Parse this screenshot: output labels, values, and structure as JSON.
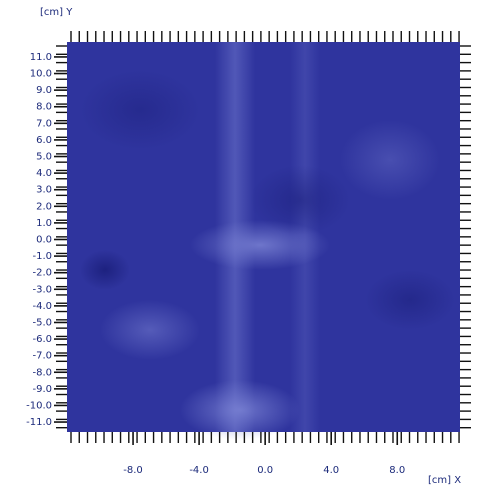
{
  "chart_data": {
    "type": "heatmap",
    "x_label": "[cm] X",
    "y_label": "[cm] Y",
    "xlim": [
      -12.0,
      11.8
    ],
    "ylim": [
      -11.6,
      11.9
    ],
    "xticks": [
      {
        "value": -8,
        "label": "-8.0"
      },
      {
        "value": -4,
        "label": "-4.0"
      },
      {
        "value": 0,
        "label": "0.0"
      },
      {
        "value": 4,
        "label": "4.0"
      },
      {
        "value": 8,
        "label": "8.0"
      }
    ],
    "yticks": [
      {
        "value": 11,
        "label": "11.0"
      },
      {
        "value": 10,
        "label": "10.0"
      },
      {
        "value": 9,
        "label": "9.0"
      },
      {
        "value": 8,
        "label": "8.0"
      },
      {
        "value": 7,
        "label": "7.0"
      },
      {
        "value": 6,
        "label": "6.0"
      },
      {
        "value": 5,
        "label": "5.0"
      },
      {
        "value": 4,
        "label": "4.0"
      },
      {
        "value": 3,
        "label": "3.0"
      },
      {
        "value": 2,
        "label": "2.0"
      },
      {
        "value": 1,
        "label": "1.0"
      },
      {
        "value": 0,
        "label": "0.0"
      },
      {
        "value": -1,
        "label": "-1.0"
      },
      {
        "value": -2,
        "label": "-2.0"
      },
      {
        "value": -3,
        "label": "-3.0"
      },
      {
        "value": -4,
        "label": "-4.0"
      },
      {
        "value": -5,
        "label": "-5.0"
      },
      {
        "value": -6,
        "label": "-6.0"
      },
      {
        "value": -7,
        "label": "-7.0"
      },
      {
        "value": -8,
        "label": "-8.0"
      },
      {
        "value": -9,
        "label": "-9.0"
      },
      {
        "value": -10,
        "label": "-10.0"
      },
      {
        "value": -11,
        "label": "-11.0"
      }
    ]
  }
}
